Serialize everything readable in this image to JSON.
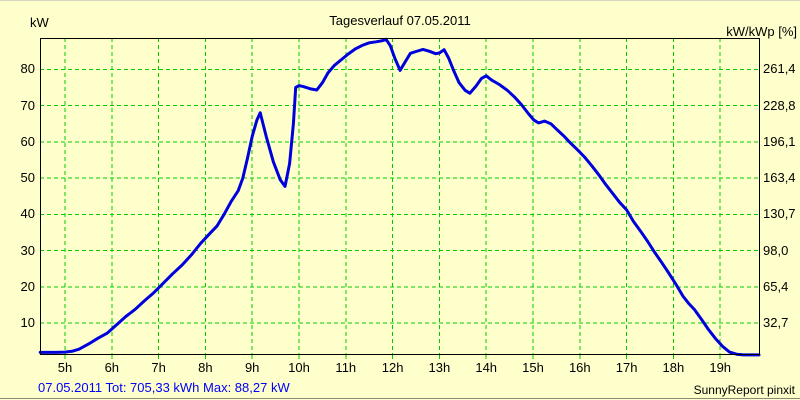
{
  "status_bar": {
    "summary": "07.05.2011 Tot: 705,33 kWh Max: 88,27 kW",
    "branding": "SunnyReport pinxit"
  },
  "colors": {
    "background": "#FFFFCC",
    "grid": "#00CC00",
    "line": "#0000DD",
    "border": "#000000",
    "status_text": "#0000FF",
    "text": "#000000"
  },
  "chart_data": {
    "type": "line",
    "title": "Tagesverlauf 07.05.2011",
    "date": "07.05.2011",
    "total_energy": "705,33 kWh",
    "max_power": "88,27 kW",
    "left_axis_label": "kW",
    "right_axis_label": "kW/kWp [%]",
    "grid": true,
    "legend": "none",
    "xlim_hours": [
      4.47,
      19.83
    ],
    "ylim_kw": [
      0,
      88.9
    ],
    "x_ticks": [
      {
        "hour": 5,
        "label": "5h"
      },
      {
        "hour": 6,
        "label": "6h"
      },
      {
        "hour": 7,
        "label": "7h"
      },
      {
        "hour": 8,
        "label": "8h"
      },
      {
        "hour": 9,
        "label": "9h"
      },
      {
        "hour": 10,
        "label": "10h"
      },
      {
        "hour": 11,
        "label": "11h"
      },
      {
        "hour": 12,
        "label": "12h"
      },
      {
        "hour": 13,
        "label": "13h"
      },
      {
        "hour": 14,
        "label": "14h"
      },
      {
        "hour": 15,
        "label": "15h"
      },
      {
        "hour": 16,
        "label": "16h"
      },
      {
        "hour": 17,
        "label": "17h"
      },
      {
        "hour": 18,
        "label": "18h"
      },
      {
        "hour": 19,
        "label": "19h"
      }
    ],
    "y_ticks": [
      {
        "kw": 10,
        "left": "10",
        "right": "32,7"
      },
      {
        "kw": 20,
        "left": "20",
        "right": "65,4"
      },
      {
        "kw": 30,
        "left": "30",
        "right": "98,0"
      },
      {
        "kw": 40,
        "left": "40",
        "right": "130,7"
      },
      {
        "kw": 50,
        "left": "50",
        "right": "163,4"
      },
      {
        "kw": 60,
        "left": "60",
        "right": "196,1"
      },
      {
        "kw": 70,
        "left": "70",
        "right": "228,8"
      },
      {
        "kw": 80,
        "left": "80",
        "right": "261,4"
      }
    ],
    "series": [
      {
        "key": "power_kw",
        "points": [
          [
            4.47,
            1.9
          ],
          [
            4.8,
            1.9
          ],
          [
            5.0,
            2.0
          ],
          [
            5.15,
            2.2
          ],
          [
            5.3,
            2.8
          ],
          [
            5.5,
            4.2
          ],
          [
            5.7,
            5.8
          ],
          [
            5.9,
            7.2
          ],
          [
            6.1,
            9.5
          ],
          [
            6.3,
            11.8
          ],
          [
            6.5,
            13.8
          ],
          [
            6.7,
            16.2
          ],
          [
            6.9,
            18.4
          ],
          [
            7.1,
            21.0
          ],
          [
            7.3,
            23.6
          ],
          [
            7.5,
            26.0
          ],
          [
            7.7,
            28.8
          ],
          [
            7.9,
            32.0
          ],
          [
            8.1,
            34.8
          ],
          [
            8.25,
            36.8
          ],
          [
            8.4,
            40.0
          ],
          [
            8.55,
            43.5
          ],
          [
            8.7,
            46.5
          ],
          [
            8.8,
            50.0
          ],
          [
            8.9,
            55.5
          ],
          [
            9.0,
            61.5
          ],
          [
            9.1,
            66.0
          ],
          [
            9.17,
            68.0
          ],
          [
            9.3,
            61.5
          ],
          [
            9.45,
            54.5
          ],
          [
            9.6,
            49.5
          ],
          [
            9.7,
            47.7
          ],
          [
            9.8,
            54.0
          ],
          [
            9.88,
            65.0
          ],
          [
            9.93,
            75.0
          ],
          [
            10.0,
            75.5
          ],
          [
            10.1,
            75.2
          ],
          [
            10.25,
            74.6
          ],
          [
            10.38,
            74.3
          ],
          [
            10.5,
            76.3
          ],
          [
            10.62,
            79.0
          ],
          [
            10.75,
            81.0
          ],
          [
            10.9,
            82.6
          ],
          [
            11.05,
            84.2
          ],
          [
            11.2,
            85.6
          ],
          [
            11.35,
            86.6
          ],
          [
            11.5,
            87.3
          ],
          [
            11.65,
            87.6
          ],
          [
            11.78,
            87.9
          ],
          [
            11.86,
            88.27
          ],
          [
            11.95,
            86.5
          ],
          [
            12.05,
            83.0
          ],
          [
            12.16,
            79.7
          ],
          [
            12.28,
            82.3
          ],
          [
            12.38,
            84.4
          ],
          [
            12.5,
            84.9
          ],
          [
            12.65,
            85.5
          ],
          [
            12.78,
            85.0
          ],
          [
            12.92,
            84.3
          ],
          [
            13.0,
            84.5
          ],
          [
            13.1,
            85.4
          ],
          [
            13.2,
            83.0
          ],
          [
            13.3,
            79.8
          ],
          [
            13.42,
            76.3
          ],
          [
            13.55,
            74.2
          ],
          [
            13.65,
            73.4
          ],
          [
            13.78,
            75.3
          ],
          [
            13.9,
            77.5
          ],
          [
            14.0,
            78.2
          ],
          [
            14.12,
            77.0
          ],
          [
            14.28,
            75.8
          ],
          [
            14.45,
            74.2
          ],
          [
            14.6,
            72.4
          ],
          [
            14.75,
            70.3
          ],
          [
            14.9,
            67.8
          ],
          [
            15.02,
            66.0
          ],
          [
            15.12,
            65.2
          ],
          [
            15.25,
            65.7
          ],
          [
            15.38,
            65.0
          ],
          [
            15.5,
            63.5
          ],
          [
            15.65,
            61.7
          ],
          [
            15.8,
            59.7
          ],
          [
            15.95,
            57.8
          ],
          [
            16.1,
            55.8
          ],
          [
            16.25,
            53.5
          ],
          [
            16.4,
            51.0
          ],
          [
            16.55,
            48.3
          ],
          [
            16.7,
            45.8
          ],
          [
            16.85,
            43.3
          ],
          [
            17.0,
            41.2
          ],
          [
            17.15,
            38.0
          ],
          [
            17.3,
            35.3
          ],
          [
            17.45,
            32.5
          ],
          [
            17.6,
            29.5
          ],
          [
            17.75,
            26.7
          ],
          [
            17.9,
            23.8
          ],
          [
            18.05,
            20.8
          ],
          [
            18.2,
            17.5
          ],
          [
            18.32,
            15.5
          ],
          [
            18.45,
            13.7
          ],
          [
            18.6,
            11.0
          ],
          [
            18.75,
            8.2
          ],
          [
            18.9,
            5.7
          ],
          [
            19.05,
            3.6
          ],
          [
            19.2,
            2.0
          ],
          [
            19.35,
            1.4
          ],
          [
            19.5,
            1.2
          ],
          [
            19.65,
            1.2
          ],
          [
            19.83,
            1.2
          ]
        ]
      }
    ]
  }
}
